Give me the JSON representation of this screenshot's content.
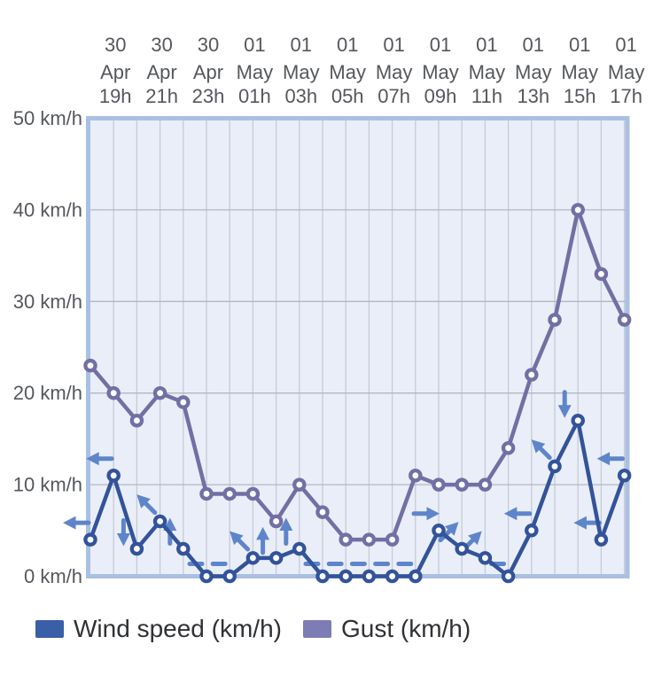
{
  "chart_data": {
    "type": "line",
    "title": "",
    "x_axis": {
      "labels": [
        [
          "30",
          "Apr",
          "19h"
        ],
        [
          "30",
          "Apr",
          "21h"
        ],
        [
          "30",
          "Apr",
          "23h"
        ],
        [
          "01",
          "May",
          "01h"
        ],
        [
          "01",
          "May",
          "03h"
        ],
        [
          "01",
          "May",
          "05h"
        ],
        [
          "01",
          "May",
          "07h"
        ],
        [
          "01",
          "May",
          "09h"
        ],
        [
          "01",
          "May",
          "11h"
        ],
        [
          "01",
          "May",
          "13h"
        ],
        [
          "01",
          "May",
          "15h"
        ],
        [
          "01",
          "May",
          "17h"
        ]
      ],
      "label_point_indices": [
        1,
        3,
        5,
        7,
        9,
        11,
        13,
        15,
        17,
        19,
        21,
        23
      ],
      "n_points": 24,
      "label_position": "top"
    },
    "y_axis": {
      "unit": "km/h",
      "tick_values": [
        0,
        10,
        20,
        30,
        40,
        50
      ],
      "tick_labels": [
        "0 km/h",
        "10 km/h",
        "20 km/h",
        "30 km/h",
        "40 km/h",
        "50 km/h"
      ],
      "ylim": [
        0,
        50
      ]
    },
    "series": [
      {
        "name": "Wind speed (km/h)",
        "color": "#33539a",
        "values": [
          4,
          11,
          3,
          6,
          3,
          0,
          0,
          2,
          2,
          3,
          0,
          0,
          0,
          0,
          0,
          5,
          3,
          2,
          0,
          5,
          12,
          17,
          4,
          11
        ]
      },
      {
        "name": "Gust (km/h)",
        "color": "#716fa4",
        "values": [
          23,
          20,
          17,
          20,
          19,
          9,
          9,
          9,
          6,
          10,
          7,
          4,
          4,
          4,
          11,
          10,
          10,
          10,
          14,
          22,
          28,
          40,
          33,
          28
        ]
      }
    ],
    "wind_direction_arrows": {
      "color": "#5e85ca",
      "calm_symbol": "dash",
      "per_point": [
        "left",
        "left",
        "down",
        "up-left",
        "up",
        "calm",
        "calm",
        "up-left",
        "up",
        "up",
        "calm",
        "calm",
        "calm",
        "calm",
        "calm",
        "right",
        "up-right",
        "up-right",
        "calm",
        "left",
        "up-left",
        "down",
        "left",
        "left"
      ]
    },
    "grid": {
      "plot_background": "#e9eef8",
      "border_color": "#a9c0e2",
      "vertical_gridline_color": "#c6cbd6",
      "horizontal_gridline_color": "#b2b7c2",
      "axis_text_color": "#54575c",
      "grid_on": true
    },
    "legend_position": "bottom"
  },
  "legend": {
    "items": [
      {
        "label": "Wind speed (km/h)",
        "color": "#3a5fa7"
      },
      {
        "label": "Gust (km/h)",
        "color": "#7e7cb5"
      }
    ]
  }
}
